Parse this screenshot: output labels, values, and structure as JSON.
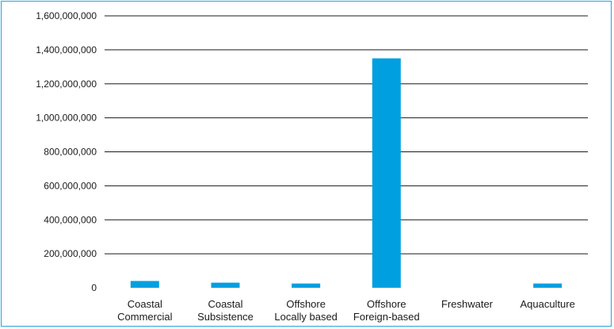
{
  "chart_data": {
    "type": "bar",
    "categories": [
      [
        "Coastal",
        "Commercial"
      ],
      [
        "Coastal",
        "Subsistence"
      ],
      [
        "Offshore",
        "Locally based"
      ],
      [
        "Offshore",
        "Foreign-based"
      ],
      [
        "Freshwater"
      ],
      [
        "Aquaculture"
      ]
    ],
    "values": [
      40000000,
      30000000,
      25000000,
      1350000000,
      0,
      25000000
    ],
    "y_ticks": [
      "0",
      "200,000,000",
      "400,000,000",
      "600,000,000",
      "800,000,000",
      "1,000,000,000",
      "1,200,000,000",
      "1,400,000,000",
      "1,600,000,000"
    ],
    "ylim": [
      0,
      1600000000
    ],
    "grid": true,
    "legend": "none",
    "bar_color": "#00a0e0",
    "grid_color": "#1a1a1a",
    "border_color": "#27a3dc"
  }
}
